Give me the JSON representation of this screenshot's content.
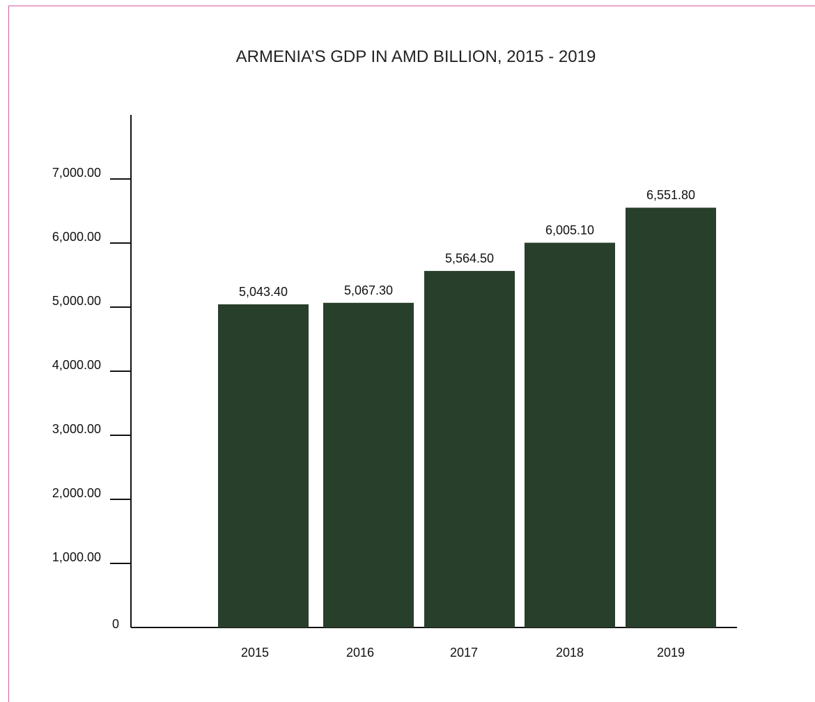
{
  "chart_data": {
    "type": "bar",
    "title": "ARMENIA’S GDP IN AMD BILLION, 2015 - 2019",
    "categories": [
      "2015",
      "2016",
      "2017",
      "2018",
      "2019"
    ],
    "values": [
      5043.4,
      5067.3,
      5564.5,
      6005.1,
      6551.8
    ],
    "value_labels": [
      "5,043.40",
      "5,067.30",
      "5,564.50",
      "6,005.10",
      "6,551.80"
    ],
    "yticks": [
      0,
      1000,
      2000,
      3000,
      4000,
      5000,
      6000,
      7000
    ],
    "ytick_labels": [
      "0",
      "1,000.00",
      "2,000.00",
      "3,000.00",
      "4,000.00",
      "5,000.00",
      "6,000.00",
      "7,000.00"
    ],
    "ylim": [
      0,
      7000
    ],
    "xlabel": "",
    "ylabel": "",
    "grid": false,
    "legend": "none",
    "bar_color": "#283f2b",
    "axis_color": "#111111",
    "frame_color": "#d65aa3"
  }
}
